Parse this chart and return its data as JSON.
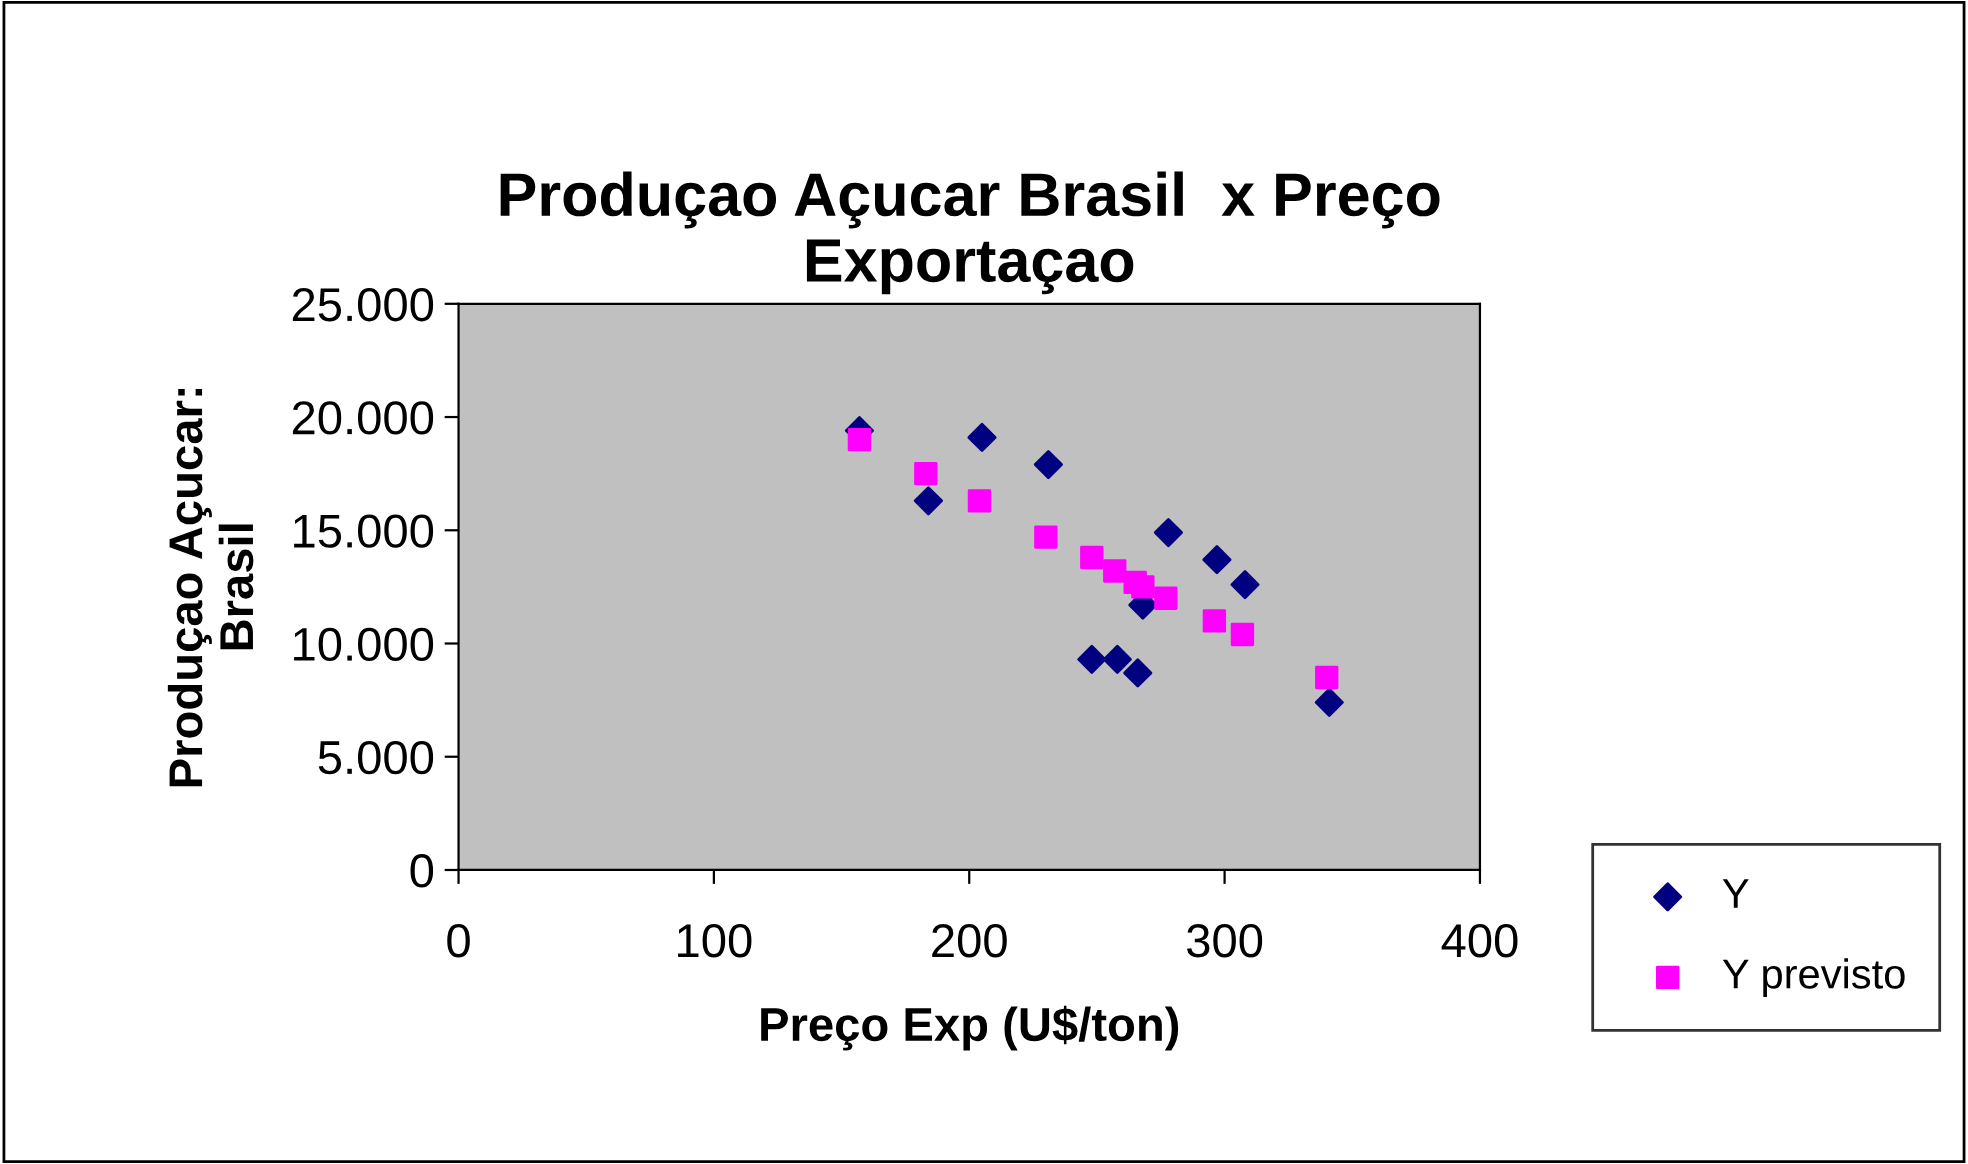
{
  "chart_data": {
    "type": "scatter",
    "title": "Produçao Açucar Brasil  x Preço\nExportaçao",
    "xlabel": "Preço Exp (U$/ton)",
    "ylabel": "Produçao Açucar:\nBrasil",
    "xlim": [
      0,
      400
    ],
    "xticks": [
      0,
      100,
      200,
      300,
      400
    ],
    "ylim": [
      0,
      25000
    ],
    "yticks": [
      {
        "value": 0,
        "label": "0"
      },
      {
        "value": 5000,
        "label": "5.000"
      },
      {
        "value": 10000,
        "label": "10.000"
      },
      {
        "value": 15000,
        "label": "15.000"
      },
      {
        "value": 20000,
        "label": "20.000"
      },
      {
        "value": 25000,
        "label": "25.000"
      }
    ],
    "grid": false,
    "legend": "right",
    "series": [
      {
        "name": "Y",
        "color": "#000080",
        "marker": "diamond",
        "x": [
          157,
          205,
          184,
          231,
          278,
          297,
          308,
          268,
          248,
          258,
          266,
          341
        ],
        "values": [
          19400,
          19100,
          16300,
          17900,
          14900,
          13700,
          12600,
          11700,
          9300,
          9300,
          8700,
          7400
        ]
      },
      {
        "name": "Y previsto",
        "color": "#ff00ff",
        "marker": "square",
        "x": [
          157,
          183,
          204,
          230,
          248,
          257,
          265,
          268,
          277,
          296,
          307,
          340
        ],
        "values": [
          19000,
          17500,
          16300,
          14700,
          13800,
          13200,
          12700,
          12500,
          12000,
          11000,
          10400,
          8500
        ]
      }
    ]
  }
}
